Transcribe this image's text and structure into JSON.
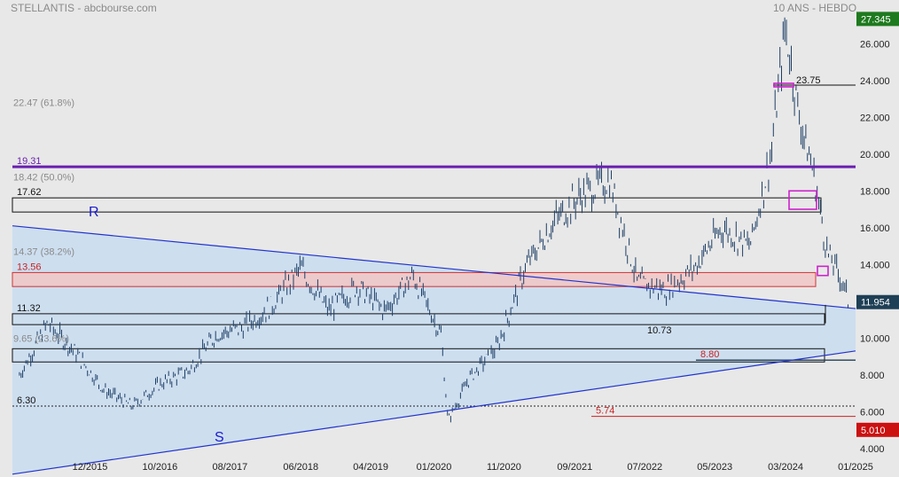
{
  "header": {
    "title": "STELLANTIS - abcbourse.com",
    "period": "10 ANS - HEBDO"
  },
  "colors": {
    "background": "#e8e8e8",
    "price": "#1e3f66",
    "resistance_line": "#6a1fb0",
    "trend_line": "#2233cc",
    "triangle_fill": "#c8dcf0",
    "support_zone": "#f0c8c8",
    "support_zone_border": "#cc2222",
    "annotation_red": "#cc2222",
    "marker": "#cc22cc",
    "badge_green": "#1e7a1e",
    "badge_red": "#cc1111",
    "badge_dark": "#1e3f55"
  },
  "chart_data": {
    "type": "line",
    "title": "STELLANTIS",
    "xlabel": "",
    "ylabel": "",
    "ylim": [
      3.7,
      27.7
    ],
    "y_ticks": [
      "4.000",
      "6.000",
      "8.000",
      "10.000",
      "12.000",
      "14.000",
      "16.000",
      "18.000",
      "20.000",
      "22.000",
      "24.000",
      "26.000"
    ],
    "x_ticks": [
      "12/2015",
      "10/2016",
      "08/2017",
      "06/2018",
      "04/2019",
      "01/2020",
      "11/2020",
      "09/2021",
      "07/2022",
      "05/2023",
      "03/2024",
      "01/2025"
    ],
    "grid": false,
    "series": [
      {
        "name": "",
        "x": [
          "2015-02",
          "2015-06",
          "2015-10",
          "2016-02",
          "2016-06",
          "2016-10",
          "2017-02",
          "2017-06",
          "2017-10",
          "2018-02",
          "2018-06",
          "2018-10",
          "2019-02",
          "2019-06",
          "2019-10",
          "2020-02",
          "2020-03",
          "2020-06",
          "2020-10",
          "2021-02",
          "2021-06",
          "2021-10",
          "2022-02",
          "2022-06",
          "2022-10",
          "2023-02",
          "2023-06",
          "2023-10",
          "2024-01",
          "2024-03",
          "2024-05",
          "2024-07",
          "2024-09",
          "2024-11",
          "2024-12"
        ],
        "values": [
          8.0,
          10.8,
          9.2,
          7.2,
          6.3,
          7.5,
          8.2,
          10.2,
          10.6,
          11.8,
          13.8,
          11.5,
          12.8,
          11.5,
          13.4,
          10.2,
          5.5,
          7.8,
          9.5,
          13.8,
          16.3,
          17.8,
          18.6,
          13.0,
          12.6,
          13.8,
          16.0,
          15.0,
          20.0,
          26.9,
          22.0,
          19.0,
          14.6,
          13.2,
          11.95
        ]
      }
    ],
    "levels": [
      {
        "label": "22.47 (61.8%)",
        "value": 22.47
      },
      {
        "label": "19.31",
        "value": 19.31
      },
      {
        "label": "18.42 (50.0%)",
        "value": 18.42
      },
      {
        "label": "17.62",
        "value": 17.62
      },
      {
        "label": "14.37 (38.2%)",
        "value": 14.37
      },
      {
        "label": "13.56",
        "value": 13.56
      },
      {
        "label": "11.32",
        "value": 11.32
      },
      {
        "label": "10.73",
        "value": 10.73
      },
      {
        "label": "9.65 (23.6%)",
        "value": 9.65
      },
      {
        "label": "8.80",
        "value": 8.8
      },
      {
        "label": "6.30",
        "value": 6.3
      },
      {
        "label": "5.74",
        "value": 5.74
      },
      {
        "label": "23.75",
        "value": 23.75
      }
    ],
    "trendlines": [
      {
        "label": "R",
        "from": [
          "2015-01",
          16.1
        ],
        "to": [
          "2025-01",
          11.6
        ]
      },
      {
        "label": "S",
        "from": [
          "2015-01",
          2.6
        ],
        "to": [
          "2025-01",
          9.3
        ]
      }
    ],
    "badges": [
      {
        "label": "27.345",
        "value": 27.345
      },
      {
        "label": "11.954",
        "value": 11.954
      },
      {
        "label": "5.010",
        "value": 5.01
      }
    ]
  }
}
